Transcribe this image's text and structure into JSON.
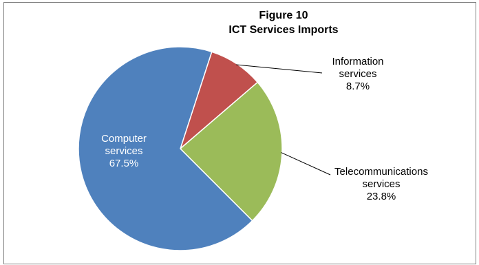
{
  "chart_data": {
    "type": "pie",
    "title": "Figure 10",
    "subtitle": "ICT Services Imports",
    "slices": [
      {
        "category": "Information services",
        "category_lines": [
          "Information",
          "services"
        ],
        "value": 8.7,
        "value_label": "8.7%",
        "color": "#c0504d"
      },
      {
        "category": "Telecommunications services",
        "category_lines": [
          "Telecommunications",
          "services"
        ],
        "value": 23.8,
        "value_label": "23.8%",
        "color": "#9bbb59"
      },
      {
        "category": "Computer services",
        "category_lines": [
          "Computer",
          "services"
        ],
        "value": 67.5,
        "value_label": "67.5%",
        "color": "#4f81bd"
      }
    ],
    "legend": "none",
    "data_labels": "category and percentage"
  }
}
